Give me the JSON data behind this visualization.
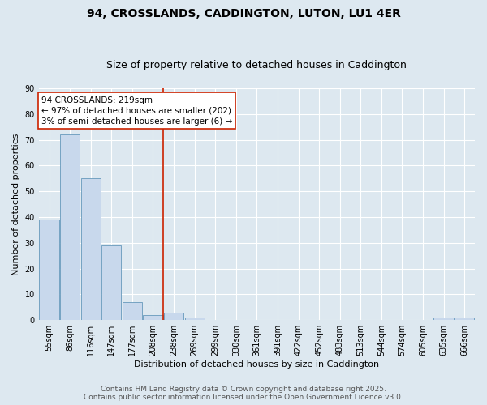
{
  "title_line1": "94, CROSSLANDS, CADDINGTON, LUTON, LU1 4ER",
  "title_line2": "Size of property relative to detached houses in Caddington",
  "xlabel": "Distribution of detached houses by size in Caddington",
  "ylabel": "Number of detached properties",
  "categories": [
    "55sqm",
    "86sqm",
    "116sqm",
    "147sqm",
    "177sqm",
    "208sqm",
    "238sqm",
    "269sqm",
    "299sqm",
    "330sqm",
    "361sqm",
    "391sqm",
    "422sqm",
    "452sqm",
    "483sqm",
    "513sqm",
    "544sqm",
    "574sqm",
    "605sqm",
    "635sqm",
    "666sqm"
  ],
  "values": [
    39,
    72,
    55,
    29,
    7,
    2,
    3,
    1,
    0,
    0,
    0,
    0,
    0,
    0,
    0,
    0,
    0,
    0,
    0,
    1,
    1
  ],
  "bar_color": "#c8d8ec",
  "bar_edgecolor": "#6699bb",
  "vline_x": 5.5,
  "vline_color": "#cc2200",
  "annotation_text": "94 CROSSLANDS: 219sqm\n← 97% of detached houses are smaller (202)\n3% of semi-detached houses are larger (6) →",
  "annotation_box_color": "#ffffff",
  "annotation_box_edgecolor": "#cc2200",
  "ylim": [
    0,
    90
  ],
  "yticks": [
    0,
    10,
    20,
    30,
    40,
    50,
    60,
    70,
    80,
    90
  ],
  "background_color": "#dde8f0",
  "grid_color": "#ffffff",
  "footer_line1": "Contains HM Land Registry data © Crown copyright and database right 2025.",
  "footer_line2": "Contains public sector information licensed under the Open Government Licence v3.0.",
  "title_fontsize": 10,
  "subtitle_fontsize": 9,
  "axis_label_fontsize": 8,
  "tick_fontsize": 7,
  "annotation_fontsize": 7.5,
  "footer_fontsize": 6.5
}
